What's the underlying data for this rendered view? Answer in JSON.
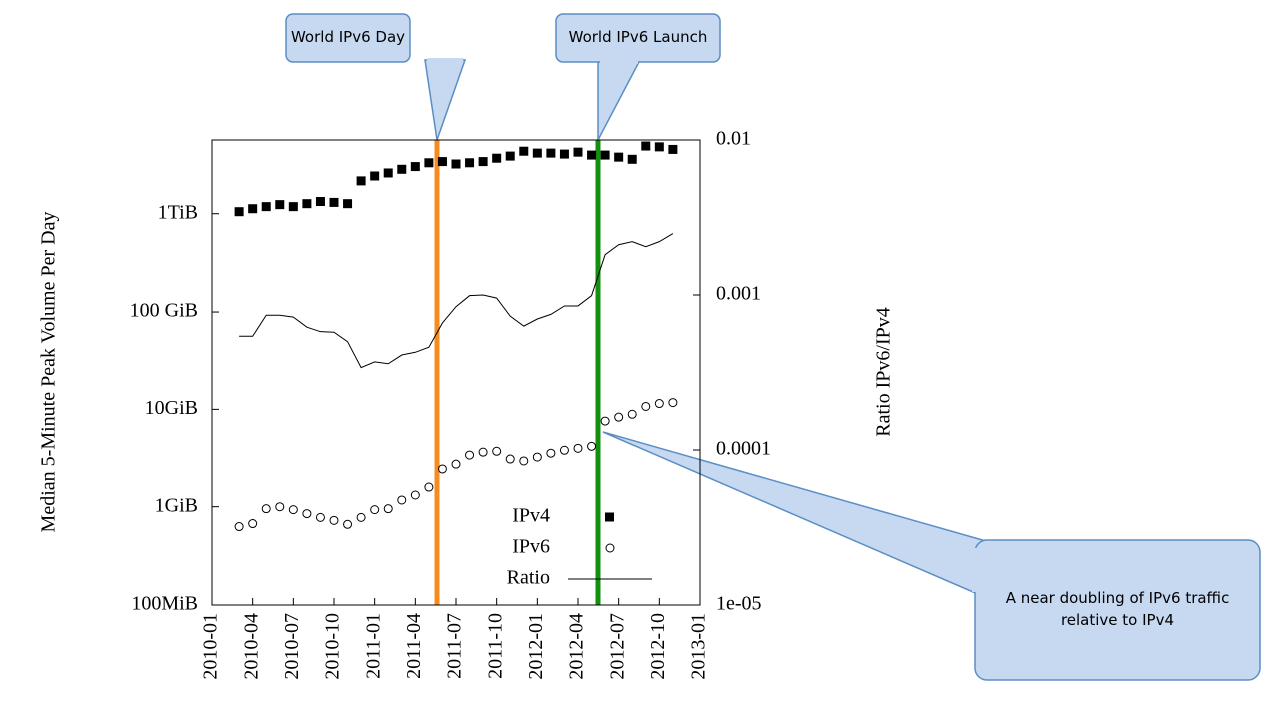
{
  "chart_data": {
    "type": "scatter",
    "xlabel": null,
    "ylabel": "Median 5-Minute Peak Volume Per Day",
    "y2label": "Ratio IPv6/IPv4",
    "xlim": [
      "2010-01",
      "2013-01"
    ],
    "xticks": [
      "2010-01",
      "2010-04",
      "2010-07",
      "2010-10",
      "2011-01",
      "2011-04",
      "2011-07",
      "2011-10",
      "2012-01",
      "2012-04",
      "2012-07",
      "2012-10",
      "2013-01"
    ],
    "ylim": [
      100,
      6000000
    ],
    "yscale": "log",
    "yticks": [
      {
        "value": 100,
        "label": "100MiB"
      },
      {
        "value": 1024,
        "label": "1GiB"
      },
      {
        "value": 10240,
        "label": "10GiB"
      },
      {
        "value": 102400,
        "label": "100 GiB"
      },
      {
        "value": 1048576,
        "label": "1TiB"
      }
    ],
    "y2lim": [
      1e-05,
      0.01
    ],
    "y2scale": "log",
    "y2ticks": [
      {
        "value": 1e-05,
        "label": "1e-05"
      },
      0.0001,
      0.001,
      0.01
    ],
    "legend": "lower right",
    "x": [
      "2010-03",
      "2010-04",
      "2010-05",
      "2010-06",
      "2010-07",
      "2010-08",
      "2010-09",
      "2010-10",
      "2010-11",
      "2010-12",
      "2011-01",
      "2011-02",
      "2011-03",
      "2011-04",
      "2011-05",
      "2011-06",
      "2011-07",
      "2011-08",
      "2011-09",
      "2011-10",
      "2011-11",
      "2011-12",
      "2012-01",
      "2012-02",
      "2012-03",
      "2012-04",
      "2012-05",
      "2012-06",
      "2012-07",
      "2012-08",
      "2012-09",
      "2012-10",
      "2012-11"
    ],
    "series": [
      {
        "name": "IPv4",
        "marker": "square",
        "color": "#000000",
        "values": [
          1100000,
          1180000,
          1240000,
          1300000,
          1240000,
          1330000,
          1400000,
          1370000,
          1330000,
          2280000,
          2560000,
          2750000,
          3000000,
          3200000,
          3500000,
          3600000,
          3400000,
          3500000,
          3600000,
          3900000,
          4100000,
          4600000,
          4400000,
          4400000,
          4300000,
          4500000,
          4200000,
          4200000,
          4000000,
          3800000,
          5200000,
          5100000,
          4800000
        ]
      },
      {
        "name": "IPv6",
        "marker": "circle",
        "color": "#000000",
        "values": [
          640,
          687,
          977,
          1023,
          955,
          870,
          795,
          741,
          675,
          795,
          955,
          977,
          1200,
          1350,
          1630,
          2500,
          2800,
          3470,
          3720,
          3800,
          3160,
          3020,
          3310,
          3630,
          3890,
          4070,
          4270,
          7760,
          8510,
          9120,
          10960,
          11750,
          12020
        ]
      },
      {
        "name": "Ratio",
        "marker": "line",
        "color": "#000000",
        "axis": "y2",
        "values": [
          0.000542,
          0.000542,
          0.00074,
          0.00074,
          0.00072,
          0.00062,
          0.00058,
          0.000575,
          0.0005,
          0.00034,
          0.00037,
          0.00036,
          0.00041,
          0.000427,
          0.00046,
          0.00066,
          0.00084,
          0.00099,
          0.001,
          0.000955,
          0.00073,
          0.00063,
          0.0007,
          0.00075,
          0.00085,
          0.00085,
          0.00099,
          0.00182,
          0.00211,
          0.00221,
          0.00205,
          0.00221,
          0.00249
        ]
      }
    ],
    "annotations": [
      "World IPv6 Day",
      "World IPv6 Launch",
      "A near doubling of IPv6 traffic relative to IPv4"
    ]
  }
}
